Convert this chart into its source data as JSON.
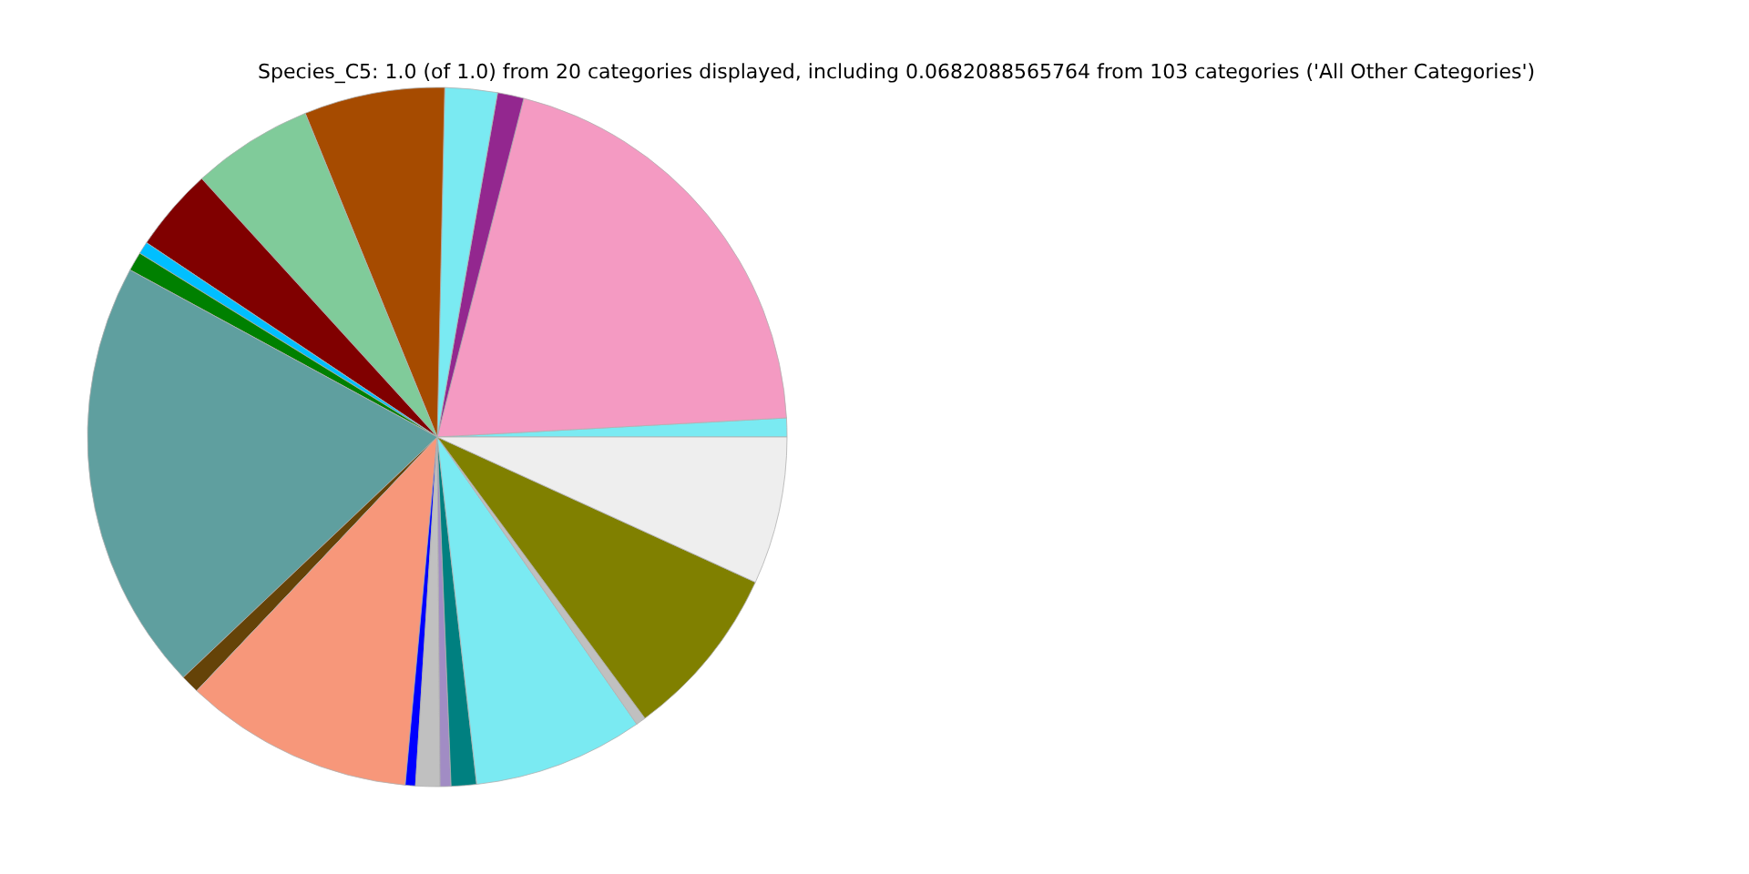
{
  "chart_data": {
    "type": "pie",
    "title": "Species_C5: 1.0 (of 1.0) from 20 categories displayed, including 0.0682088565764 from 103 categories ('All Other Categories')",
    "categories": [
      null,
      null,
      null,
      null,
      null,
      null,
      null,
      null,
      null,
      null,
      null,
      null,
      null,
      null,
      null,
      null,
      null,
      null,
      null,
      null
    ],
    "values": [
      0.87,
      20.15,
      1.22,
      2.42,
      6.5,
      5.6,
      3.86,
      0.57,
      0.88,
      20.0,
      0.86,
      10.61,
      0.47,
      1.12,
      0.5,
      1.17,
      7.86,
      0.46,
      8.06,
      6.82
    ],
    "colors": [
      "#7aeaf2",
      "#f49ac2",
      "#93278f",
      "#7aeaf2",
      "#a64b00",
      "#80cb9a",
      "#800000",
      "#00bfff",
      "#008000",
      "#5f9f9f",
      "#654308",
      "#f7977a",
      "#0000ff",
      "#c0c0c0",
      "#a18cc4",
      "#008080",
      "#7aeaf2",
      "#c0c0c0",
      "#808000",
      "#eeeeee"
    ]
  }
}
